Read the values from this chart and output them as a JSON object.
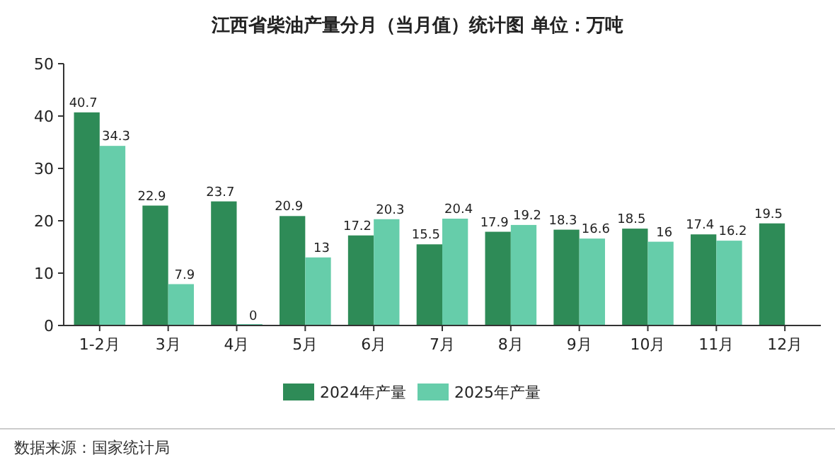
{
  "chart_data": {
    "type": "bar",
    "title": "江西省柴油产量分月（当月值）统计图 单位：万吨",
    "categories": [
      "1-2月",
      "3月",
      "4月",
      "5月",
      "6月",
      "7月",
      "8月",
      "9月",
      "10月",
      "11月",
      "12月"
    ],
    "series": [
      {
        "name": "2024年产量",
        "color": "#2e8b57",
        "values": [
          40.7,
          22.9,
          23.7,
          20.9,
          17.2,
          15.5,
          17.9,
          18.3,
          18.5,
          17.4,
          19.5
        ]
      },
      {
        "name": "2025年产量",
        "color": "#66cdaa",
        "values": [
          34.3,
          7.9,
          0,
          13,
          20.3,
          20.4,
          19.2,
          16.6,
          16,
          16.2,
          null
        ]
      }
    ],
    "ylim": [
      0,
      50
    ],
    "yticks": [
      0,
      10,
      20,
      30,
      40,
      50
    ],
    "data_labels": true,
    "legend": "bottom",
    "annotations": [
      "数据来源：国家统计局"
    ]
  }
}
